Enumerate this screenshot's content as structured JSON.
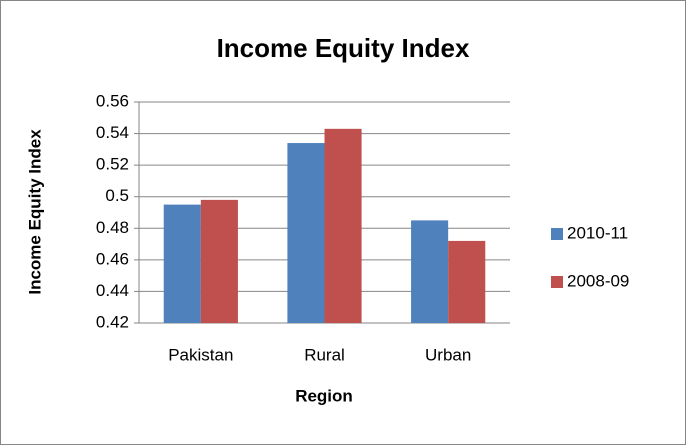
{
  "chart_data": {
    "type": "bar",
    "title": "Income Equity Index",
    "x_label": "Region",
    "y_label": "Income Equity Index",
    "categories": [
      "Pakistan",
      "Rural",
      "Urban"
    ],
    "series": [
      {
        "name": "2010-11",
        "color": "#4f81bd",
        "values": [
          0.495,
          0.534,
          0.485
        ]
      },
      {
        "name": "2008-09",
        "color": "#c0504d",
        "values": [
          0.498,
          0.543,
          0.472
        ]
      }
    ],
    "ylim": [
      0.42,
      0.56
    ],
    "yticks": [
      0.42,
      0.44,
      0.46,
      0.48,
      0.5,
      0.52,
      0.54,
      0.56
    ],
    "grid": true,
    "legend": "right"
  }
}
